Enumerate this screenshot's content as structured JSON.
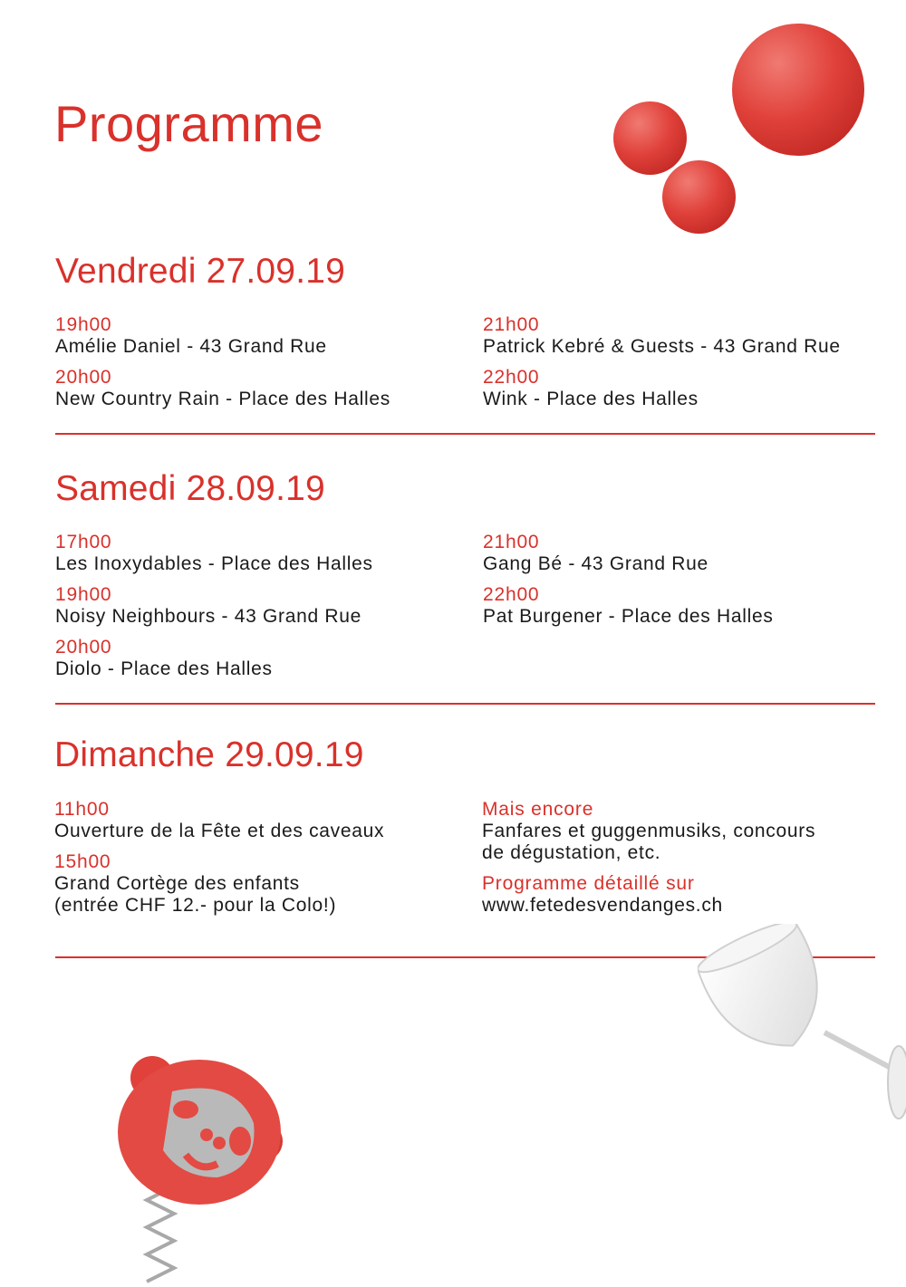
{
  "title": "Programme",
  "days": [
    {
      "heading": "Vendredi 27.09.19",
      "left": [
        {
          "time": "19h00",
          "text": "Amélie Daniel - 43 Grand Rue"
        },
        {
          "time": "20h00",
          "text": "New Country Rain - Place des Halles"
        }
      ],
      "right": [
        {
          "time": "21h00",
          "text": "Patrick Kebré & Guests - 43 Grand Rue"
        },
        {
          "time": "22h00",
          "text": "Wink - Place des Halles"
        }
      ]
    },
    {
      "heading": "Samedi 28.09.19",
      "left": [
        {
          "time": "17h00",
          "text": "Les Inoxydables - Place des Halles"
        },
        {
          "time": "19h00",
          "text": "Noisy Neighbours - 43 Grand Rue"
        },
        {
          "time": "20h00",
          "text": "Diolo - Place des Halles"
        }
      ],
      "right": [
        {
          "time": "21h00",
          "text": "Gang Bé - 43 Grand Rue"
        },
        {
          "time": "22h00",
          "text": "Pat Burgener - Place des Halles"
        }
      ]
    },
    {
      "heading": "Dimanche 29.09.19",
      "left": [
        {
          "time": "11h00",
          "text": "Ouverture de la Fête et des caveaux"
        },
        {
          "time": "15h00",
          "text": "Grand Cortège des enfants",
          "text2": "(entrée CHF 12.- pour la Colo!)"
        }
      ],
      "right": [
        {
          "time": "Mais encore",
          "text": "Fanfares et guggenmusiks, concours",
          "text2": "de dégustation, etc."
        },
        {
          "time": "Programme détaillé sur",
          "text": "www.fetedesvendanges.ch"
        }
      ]
    }
  ],
  "colors": {
    "accent": "#d9312b",
    "text": "#1a1a1a"
  },
  "decorations": [
    "red-spheres",
    "monkey-corkscrew",
    "wine-glass"
  ]
}
